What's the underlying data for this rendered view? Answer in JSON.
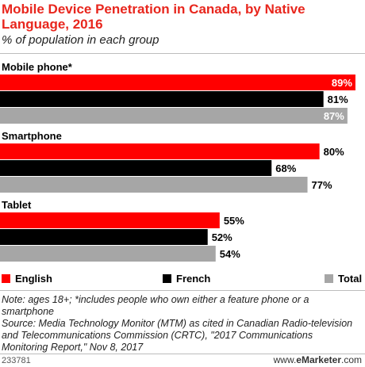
{
  "header": {
    "title": "Mobile Device Penetration in Canada, by Native Language, 2016",
    "subtitle": "% of population in each group"
  },
  "chart_data": {
    "type": "bar",
    "orientation": "horizontal",
    "categories": [
      "Mobile phone*",
      "Smartphone",
      "Tablet"
    ],
    "series": [
      {
        "name": "English",
        "values": [
          89,
          80,
          55
        ],
        "color": "#ff0000"
      },
      {
        "name": "French",
        "values": [
          81,
          68,
          52
        ],
        "color": "#000000"
      },
      {
        "name": "Total",
        "values": [
          87,
          77,
          54
        ],
        "color": "#a6a6a6"
      }
    ],
    "value_suffix": "%",
    "xlim": [
      0,
      91
    ],
    "legend_position": "bottom",
    "grid": false
  },
  "notes": {
    "note": "Note: ages 18+; *includes people who own either a feature phone or a smartphone",
    "source": "Source: Media Technology Monitor (MTM) as cited in Canadian Radio-television and Telecommunications Commission (CRTC), \"2017 Communications Monitoring Report,\" Nov 8, 2017"
  },
  "footer": {
    "chart_id": "233781",
    "brand_prefix": "www.",
    "brand_name": "eMarketer",
    "brand_suffix": ".com"
  }
}
